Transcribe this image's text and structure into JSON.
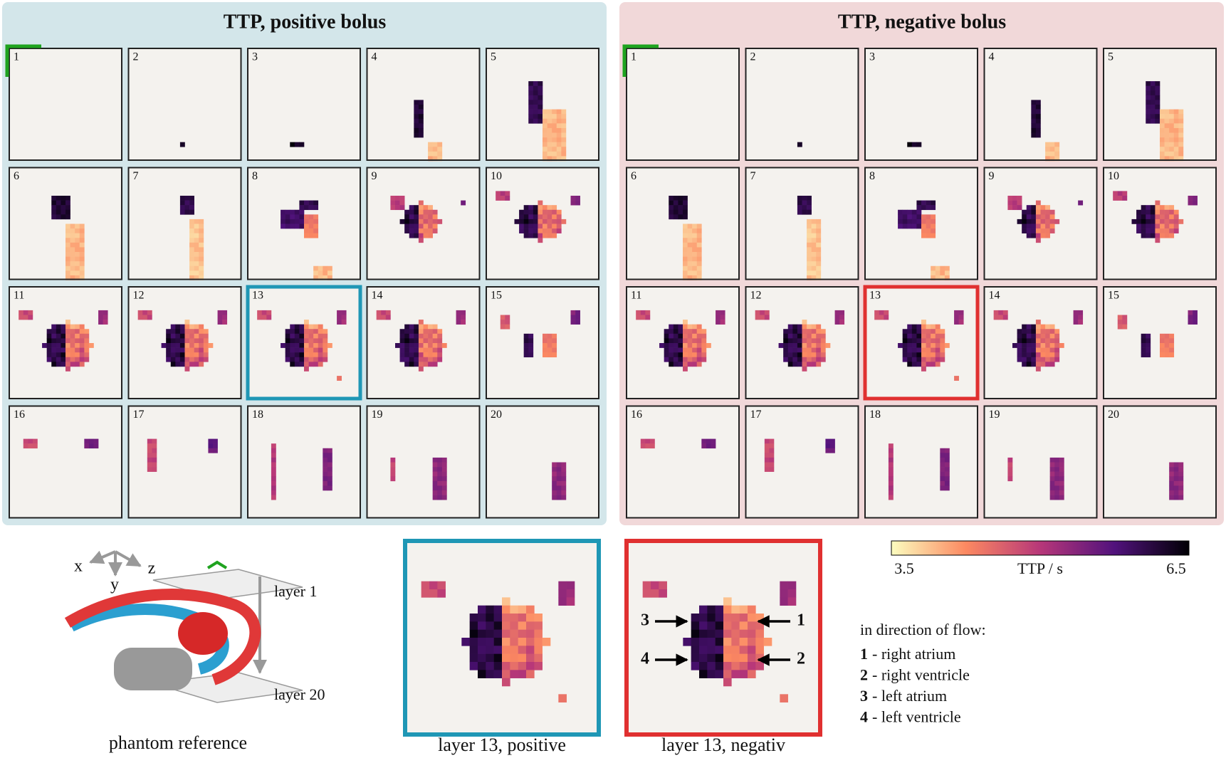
{
  "panels": [
    {
      "title": "TTP, positive bolus",
      "tiles": [
        1,
        2,
        3,
        4,
        5,
        6,
        7,
        8,
        9,
        10,
        11,
        12,
        13,
        14,
        15,
        16,
        17,
        18,
        19,
        20
      ]
    },
    {
      "title": "TTP, negative bolus",
      "tiles": [
        1,
        2,
        3,
        4,
        5,
        6,
        7,
        8,
        9,
        10,
        11,
        12,
        13,
        14,
        15,
        16,
        17,
        18,
        19,
        20
      ]
    }
  ],
  "colorbar": {
    "label": "TTP / s",
    "lim": [
      3.5,
      6.5
    ],
    "ticks": [
      3.5,
      6.5
    ]
  },
  "phantom": {
    "axes": [
      "x",
      "y",
      "z"
    ],
    "layers": [
      "layer 1",
      "layer 20"
    ],
    "caption": "phantom reference"
  },
  "zoom": [
    {
      "caption": "layer 13, positive"
    },
    {
      "caption": "layer 13, negativ",
      "markers": [
        "3",
        "1",
        "4",
        "2"
      ]
    }
  ],
  "legend": {
    "title": "in direction of flow:",
    "items": [
      {
        "number": "1",
        "text": "- right atrium"
      },
      {
        "number": "2",
        "text": "- right ventricle"
      },
      {
        "number": "3",
        "text": "- left atrium"
      },
      {
        "number": "4",
        "text": "- left ventricle"
      }
    ]
  }
}
